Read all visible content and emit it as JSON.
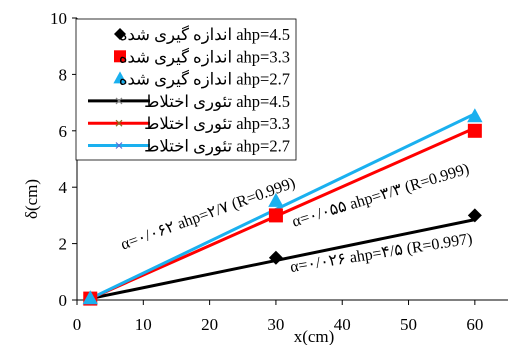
{
  "chart_data": {
    "type": "scatter",
    "xlabel": "x(cm)",
    "ylabel": "δ(cm)",
    "xlim": [
      0,
      65
    ],
    "ylim": [
      0,
      10
    ],
    "xticks": [
      "0",
      "10",
      "20",
      "30",
      "40",
      "50",
      "60"
    ],
    "yticks": [
      "0",
      "2",
      "4",
      "6",
      "8",
      "10"
    ],
    "grid": false,
    "legend_placement": "top-left",
    "measured": [
      {
        "name": "اندازه گیری شده  ahp=4.5",
        "marker": "diamond",
        "color": "#000000",
        "x": [
          2,
          30,
          60
        ],
        "y": [
          0.05,
          1.5,
          3.0
        ]
      },
      {
        "name": "اندازه گیری شده  ahp=3.3",
        "marker": "square",
        "color": "#ff0000",
        "x": [
          2,
          30,
          60
        ],
        "y": [
          0.05,
          3.0,
          6.0
        ]
      },
      {
        "name": "اندازه گیری شده  ahp=2.7",
        "marker": "triangle",
        "color": "#1ab0ef",
        "x": [
          2,
          30,
          60
        ],
        "y": [
          0.05,
          3.5,
          6.5
        ]
      }
    ],
    "theory": [
      {
        "name": "تئوری اختلاط  ahp=4.5",
        "color": "#000000",
        "x": [
          2,
          60
        ],
        "y": [
          0.05,
          2.85
        ]
      },
      {
        "name": "تئوری اختلاط  ahp=3.3",
        "color": "#ff0000",
        "x": [
          2,
          60
        ],
        "y": [
          0.05,
          6.1
        ]
      },
      {
        "name": "تئوری اختلاط  ahp=2.7",
        "color": "#1ab0ef",
        "x": [
          2,
          60
        ],
        "y": [
          0.05,
          6.6
        ]
      }
    ],
    "annotations": [
      {
        "text": "α=۰/۰۶۲ ahp=۲/۷ (R=0.999)",
        "x": 20,
        "y": 2.9,
        "angle": -20
      },
      {
        "text": "α=۰/۰۵۵ ahp=۳/۳ (R=0.999)",
        "x": 46,
        "y": 3.55,
        "angle": -17
      },
      {
        "text": "α=۰/۰۲۶  ahp=۴/۵ (R=0.997)",
        "x": 46,
        "y": 1.5,
        "angle": -9
      }
    ]
  }
}
